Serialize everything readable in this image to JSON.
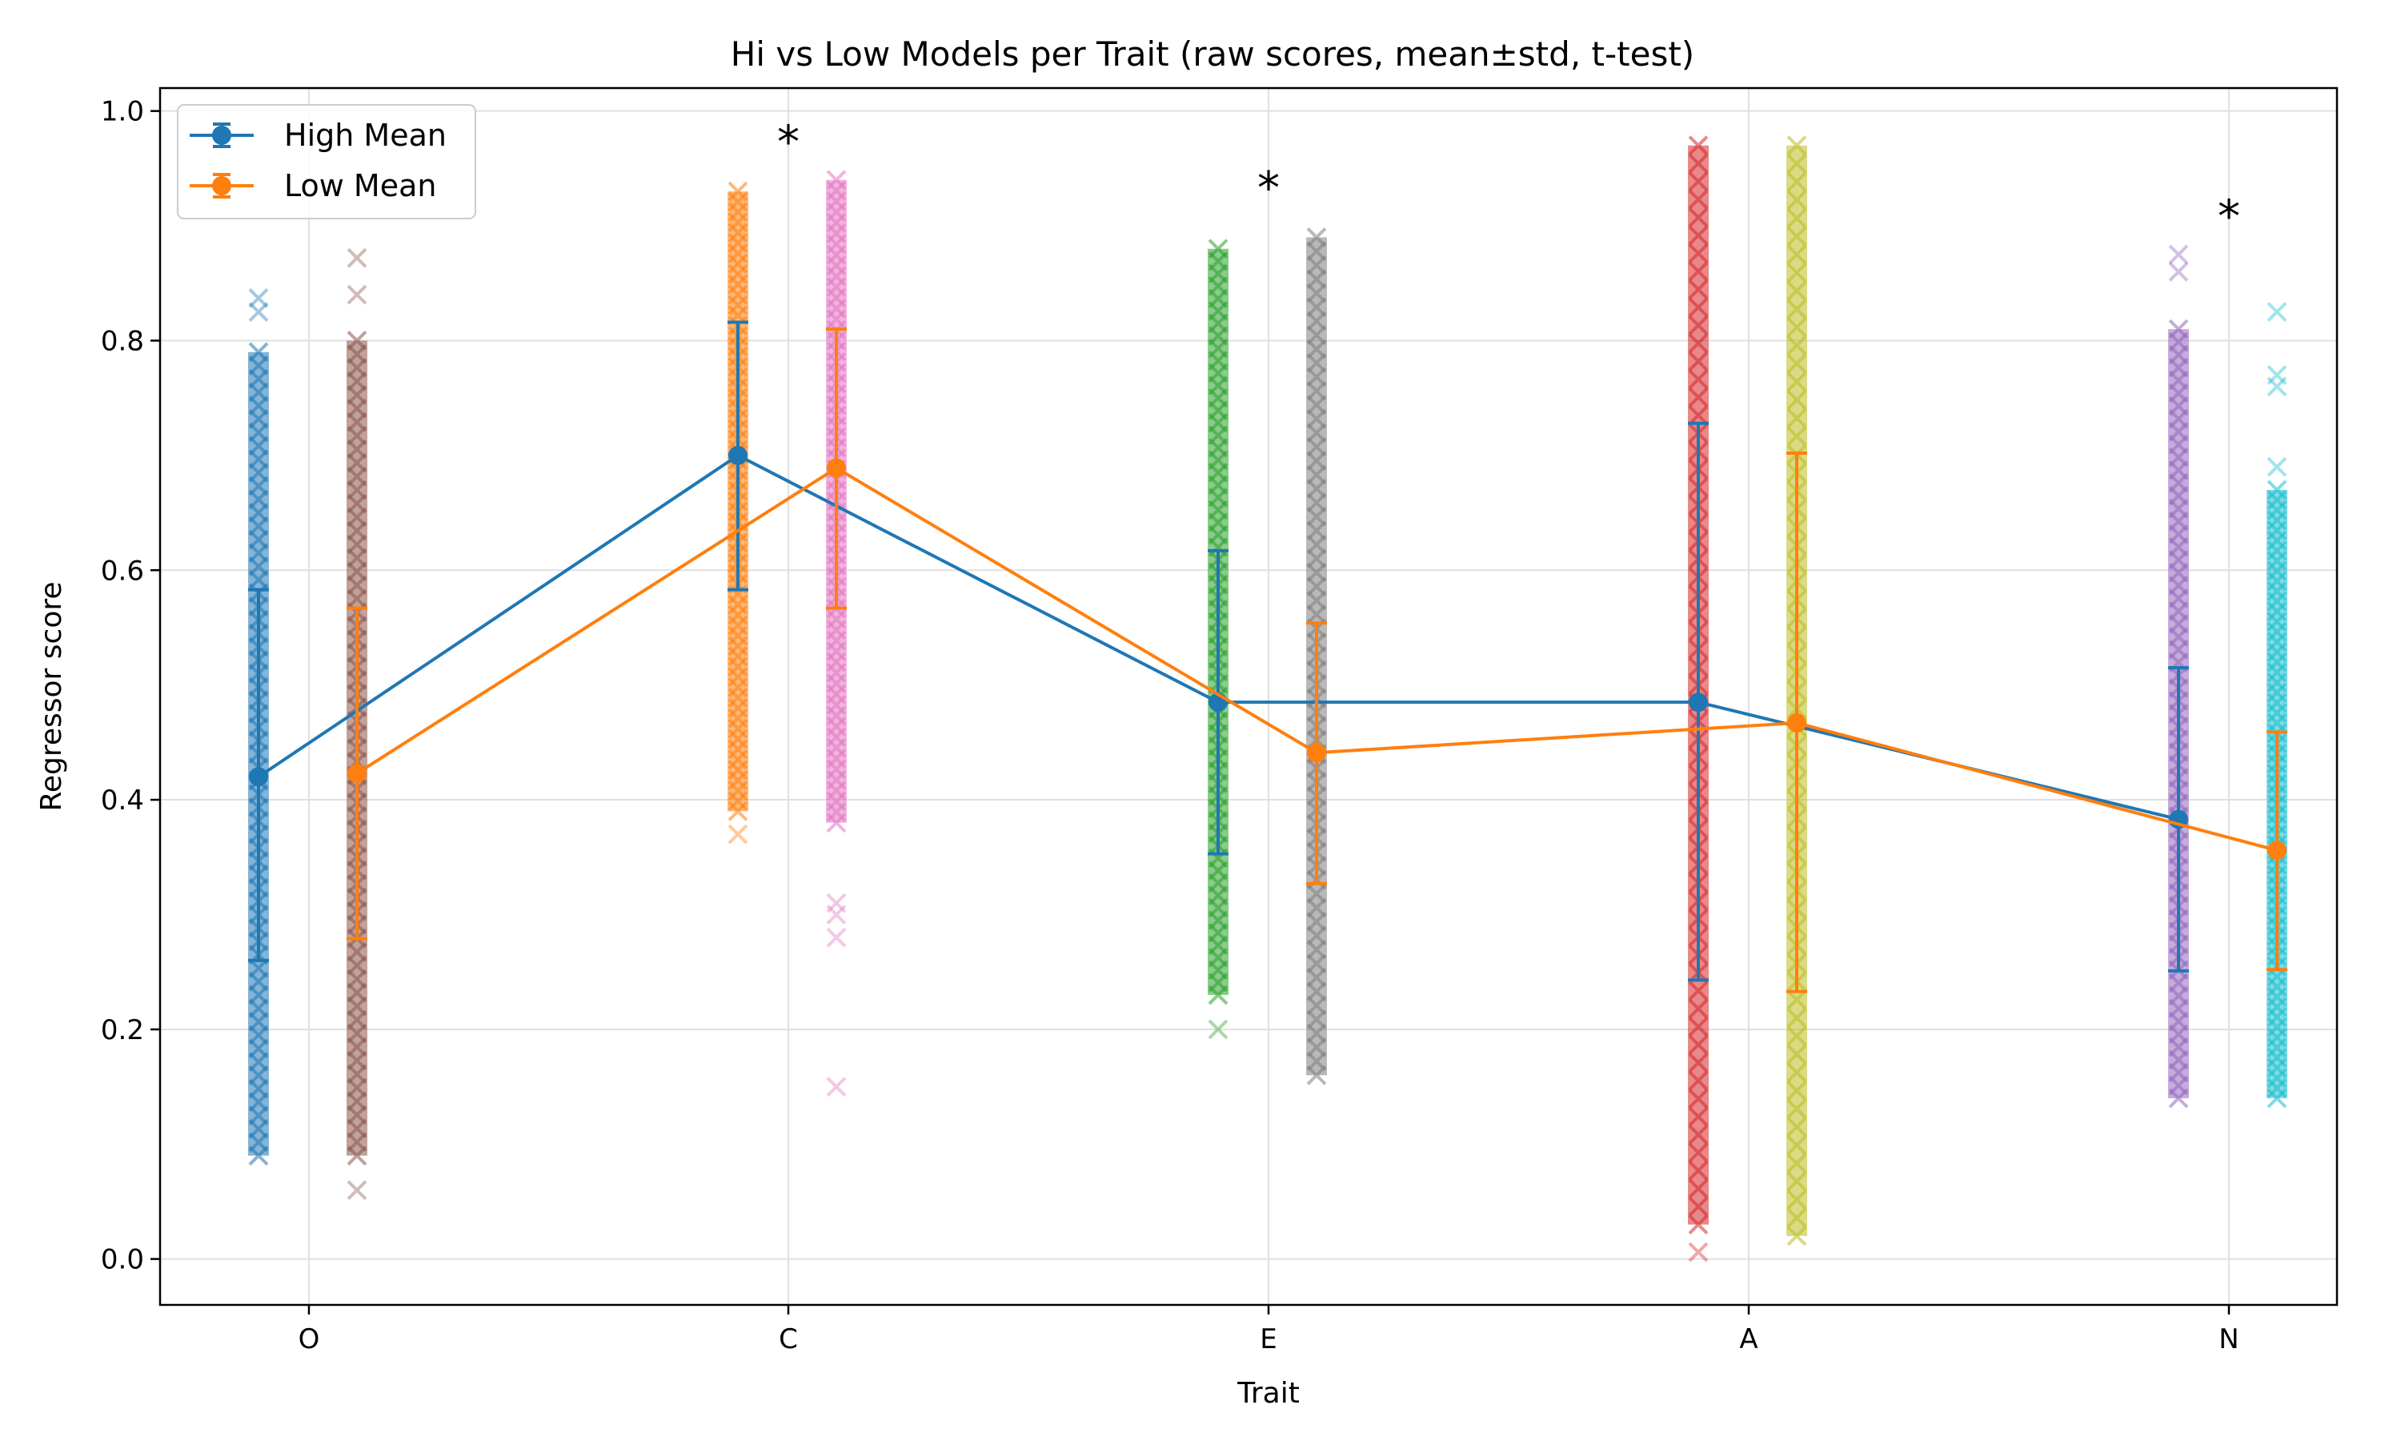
{
  "chart_data": {
    "type": "scatter",
    "title": "Hi vs Low Models per Trait (raw scores, mean±std, t-test)",
    "xlabel": "Trait",
    "ylabel": "Regressor score",
    "categories": [
      "O",
      "C",
      "E",
      "A",
      "N"
    ],
    "ylim": [
      -0.04,
      1.02
    ],
    "yticks": [
      "0.0",
      "0.2",
      "0.4",
      "0.6",
      "0.8",
      "1.0"
    ],
    "grid": true,
    "legend_position": "top-left",
    "series": [
      {
        "name": "High Mean",
        "color": "#1f77b4",
        "mean": [
          0.42,
          0.7,
          0.485,
          0.485,
          0.383
        ],
        "std_low": [
          0.26,
          0.583,
          0.353,
          0.243,
          0.251
        ],
        "std_high": [
          0.583,
          0.816,
          0.617,
          0.728,
          0.515
        ]
      },
      {
        "name": "Low Mean",
        "color": "#ff7f0e",
        "mean": [
          0.423,
          0.689,
          0.441,
          0.467,
          0.356
        ],
        "std_low": [
          0.279,
          0.567,
          0.327,
          0.233,
          0.252
        ],
        "std_high": [
          0.567,
          0.81,
          0.554,
          0.702,
          0.459
        ]
      }
    ],
    "raw_scores": [
      {
        "trait": "O",
        "group": "high",
        "color": "#1f77b4",
        "range": [
          0.083,
          0.837
        ],
        "dense": [
          0.09,
          0.79
        ],
        "outliers": [
          0.825,
          0.837
        ]
      },
      {
        "trait": "O",
        "group": "low",
        "color": "#8c564b",
        "range": [
          0.053,
          0.872
        ],
        "dense": [
          0.09,
          0.8
        ],
        "outliers": [
          0.84,
          0.872,
          0.06
        ]
      },
      {
        "trait": "C",
        "group": "high",
        "color": "#ff7f0e",
        "range": [
          0.37,
          0.94
        ],
        "dense": [
          0.39,
          0.93
        ],
        "outliers": [
          0.37
        ]
      },
      {
        "trait": "C",
        "group": "low",
        "color": "#e377c2",
        "range": [
          0.15,
          0.94
        ],
        "dense": [
          0.38,
          0.94
        ],
        "outliers": [
          0.31,
          0.3,
          0.28,
          0.15
        ]
      },
      {
        "trait": "E",
        "group": "high",
        "color": "#2ca02c",
        "range": [
          0.2,
          0.887
        ],
        "dense": [
          0.23,
          0.88
        ],
        "outliers": [
          0.2
        ]
      },
      {
        "trait": "E",
        "group": "low",
        "color": "#7f7f7f",
        "range": [
          0.155,
          0.9
        ],
        "dense": [
          0.16,
          0.89
        ],
        "outliers": []
      },
      {
        "trait": "A",
        "group": "high",
        "color": "#d62728",
        "range": [
          0.006,
          0.975
        ],
        "dense": [
          0.03,
          0.97
        ],
        "outliers": [
          0.006
        ]
      },
      {
        "trait": "A",
        "group": "low",
        "color": "#bcbd22",
        "range": [
          0.01,
          0.975
        ],
        "dense": [
          0.02,
          0.97
        ],
        "outliers": []
      },
      {
        "trait": "N",
        "group": "high",
        "color": "#9467bd",
        "range": [
          0.14,
          0.875
        ],
        "dense": [
          0.14,
          0.81
        ],
        "outliers": [
          0.86,
          0.875
        ]
      },
      {
        "trait": "N",
        "group": "low",
        "color": "#17becf",
        "range": [
          0.14,
          0.825
        ],
        "dense": [
          0.14,
          0.67
        ],
        "outliers": [
          0.69,
          0.76,
          0.77,
          0.825
        ]
      }
    ],
    "annotations": [
      {
        "trait": "C",
        "text": "*",
        "y": 0.975
      },
      {
        "trait": "E",
        "text": "*",
        "y": 0.935
      },
      {
        "trait": "N",
        "text": "*",
        "y": 0.91
      }
    ]
  }
}
